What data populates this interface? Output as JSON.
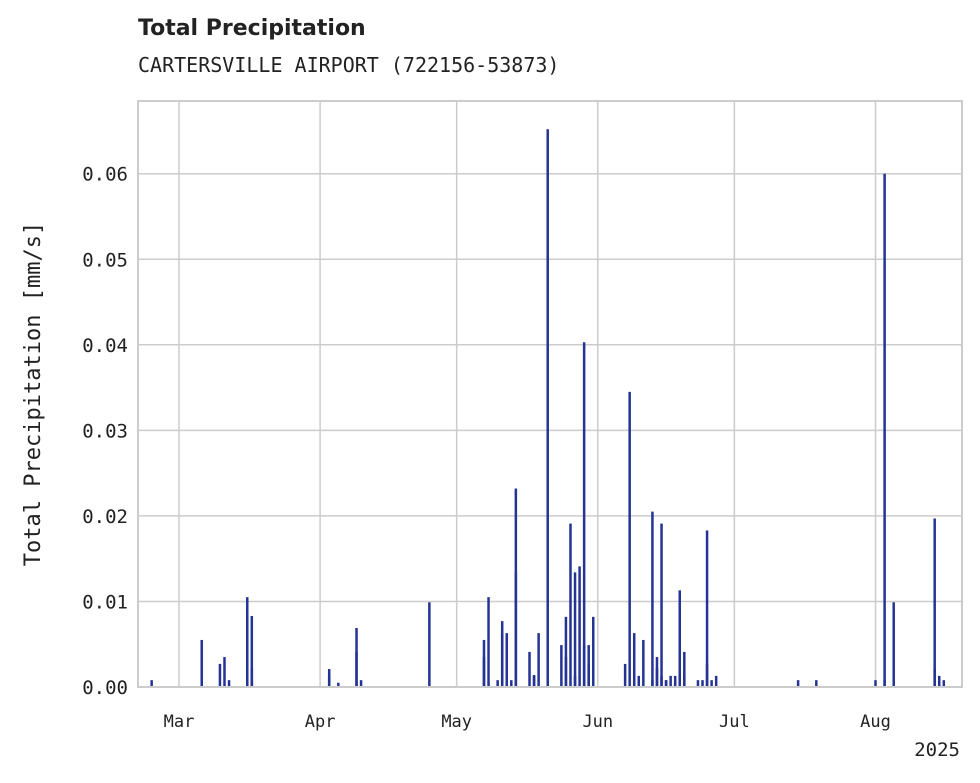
{
  "chart_data": {
    "type": "bar",
    "title": "Total Precipitation",
    "subtitle": "CARTERSVILLE AIRPORT (722156-53873)",
    "xlabel": "",
    "ylabel": "Total Precipitation [mm/s]",
    "year_label": "2025",
    "ylim": [
      0,
      0.0685
    ],
    "xlim": [
      "2025-02-20",
      "2025-08-20"
    ],
    "x_ticks": [
      {
        "date": "2025-03-01",
        "label": "Mar"
      },
      {
        "date": "2025-04-01",
        "label": "Apr"
      },
      {
        "date": "2025-05-01",
        "label": "May"
      },
      {
        "date": "2025-06-01",
        "label": "Jun"
      },
      {
        "date": "2025-07-01",
        "label": "Jul"
      },
      {
        "date": "2025-08-01",
        "label": "Aug"
      }
    ],
    "y_ticks": [
      {
        "value": 0,
        "label": "0.00"
      },
      {
        "value": 0.01,
        "label": "0.01"
      },
      {
        "value": 0.02,
        "label": "0.02"
      },
      {
        "value": 0.03,
        "label": "0.03"
      },
      {
        "value": 0.04,
        "label": "0.04"
      },
      {
        "value": 0.05,
        "label": "0.05"
      },
      {
        "value": 0.06,
        "label": "0.06"
      }
    ],
    "grid": true,
    "bar_color": "#253494",
    "x": [
      "2025-02-23",
      "2025-03-06",
      "2025-03-10",
      "2025-03-11",
      "2025-03-12",
      "2025-03-16",
      "2025-03-17",
      "2025-03-17",
      "2025-03-17",
      "2025-04-03",
      "2025-04-03",
      "2025-04-05",
      "2025-04-09",
      "2025-04-09",
      "2025-04-10",
      "2025-04-25",
      "2025-05-07",
      "2025-05-07",
      "2025-05-08",
      "2025-05-10",
      "2025-05-11",
      "2025-05-11",
      "2025-05-12",
      "2025-05-12",
      "2025-05-13",
      "2025-05-14",
      "2025-05-14",
      "2025-05-17",
      "2025-05-18",
      "2025-05-18",
      "2025-05-19",
      "2025-05-21",
      "2025-05-24",
      "2025-05-25",
      "2025-05-25",
      "2025-05-26",
      "2025-05-27",
      "2025-05-27",
      "2025-05-28",
      "2025-05-29",
      "2025-05-29",
      "2025-05-30",
      "2025-05-30",
      "2025-05-31",
      "2025-06-07",
      "2025-06-08",
      "2025-06-09",
      "2025-06-10",
      "2025-06-11",
      "2025-06-13",
      "2025-06-13",
      "2025-06-14",
      "2025-06-14",
      "2025-06-15",
      "2025-06-15",
      "2025-06-16",
      "2025-06-16",
      "2025-06-17",
      "2025-06-18",
      "2025-06-19",
      "2025-06-20",
      "2025-06-20",
      "2025-06-23",
      "2025-06-24",
      "2025-06-25",
      "2025-06-25",
      "2025-06-26",
      "2025-06-27",
      "2025-07-15",
      "2025-07-19",
      "2025-08-01",
      "2025-08-03",
      "2025-08-03",
      "2025-08-05",
      "2025-08-14",
      "2025-08-14",
      "2025-08-15",
      "2025-08-16"
    ],
    "values": [
      0.0008,
      0.0055,
      0.0027,
      0.0035,
      0.0008,
      0.0105,
      0.0083,
      0.0022,
      0.0008,
      0.0021,
      0.0013,
      0.0005,
      0.0069,
      0.0041,
      0.0008,
      0.0099,
      0.0055,
      0.0035,
      0.0105,
      0.0008,
      0.0077,
      0.0063,
      0.0063,
      0.0049,
      0.0008,
      0.0232,
      0.0134,
      0.0041,
      0.0014,
      0.0013,
      0.0063,
      0.0652,
      0.0049,
      0.0035,
      0.0082,
      0.0191,
      0.0134,
      0.0013,
      0.0141,
      0.0049,
      0.0403,
      0.0049,
      0.0027,
      0.0082,
      0.0027,
      0.0345,
      0.0063,
      0.0013,
      0.0055,
      0.0008,
      0.0205,
      0.0035,
      0.0022,
      0.0191,
      0.0013,
      0.0008,
      0.0008,
      0.0013,
      0.0013,
      0.0113,
      0.0041,
      0.0013,
      0.0008,
      0.0008,
      0.0027,
      0.0183,
      0.0008,
      0.0013,
      0.0008,
      0.0008,
      0.0008,
      0.06,
      0.0008,
      0.0099,
      0.0197,
      0.0021,
      0.0013,
      0.0008
    ]
  }
}
